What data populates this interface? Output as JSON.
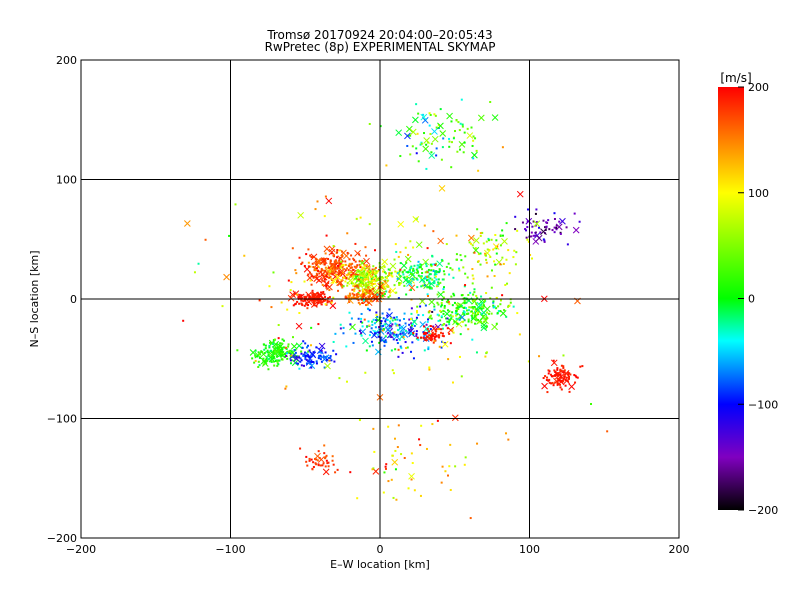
{
  "chart_data": {
    "type": "scatter",
    "title": "Tromsø 20170924 20:04:00–20:05:43",
    "subtitle": "RwPretec (8p) EXPERIMENTAL SKYMAP",
    "xlabel": "E–W location [km]",
    "ylabel": "N–S location [km]",
    "xlim": [
      -200,
      200
    ],
    "ylim": [
      -200,
      200
    ],
    "xticks": [
      -200,
      -100,
      0,
      100,
      200
    ],
    "yticks": [
      -200,
      -100,
      0,
      100,
      200
    ],
    "xtick_labels": [
      "−200",
      "−100",
      "0",
      "100",
      "200"
    ],
    "ytick_labels": [
      "−200",
      "−100",
      "0",
      "100",
      "200"
    ],
    "grid": true,
    "colorbar": {
      "label": "[m/s]",
      "min": -200,
      "max": 200,
      "ticks": [
        -200,
        -100,
        0,
        100,
        200
      ],
      "tick_labels": [
        "−200",
        "−100",
        "0",
        "100",
        "200"
      ],
      "stops": [
        {
          "v": -200,
          "color": "#000000"
        },
        {
          "v": -150,
          "color": "#8000c0"
        },
        {
          "v": -100,
          "color": "#0000ff"
        },
        {
          "v": -40,
          "color": "#00ffff"
        },
        {
          "v": 0,
          "color": "#00ff00"
        },
        {
          "v": 100,
          "color": "#ffff00"
        },
        {
          "v": 150,
          "color": "#ff8000"
        },
        {
          "v": 200,
          "color": "#ff0000"
        }
      ]
    },
    "marker_types": [
      "dot",
      "cross"
    ],
    "clusters": [
      {
        "cx": -30,
        "cy": 25,
        "sx": 22,
        "sy": 14,
        "n": 260,
        "v": 170,
        "vs": 40
      },
      {
        "cx": -5,
        "cy": 15,
        "sx": 20,
        "sy": 14,
        "n": 220,
        "v": 80,
        "vs": 70
      },
      {
        "cx": 30,
        "cy": 20,
        "sx": 22,
        "sy": 14,
        "n": 160,
        "v": 0,
        "vs": 80
      },
      {
        "cx": -45,
        "cy": 0,
        "sx": 12,
        "sy": 6,
        "n": 120,
        "v": 190,
        "vs": 15
      },
      {
        "cx": -10,
        "cy": 2,
        "sx": 14,
        "sy": 6,
        "n": 110,
        "v": 160,
        "vs": 40
      },
      {
        "cx": 60,
        "cy": -10,
        "sx": 25,
        "sy": 15,
        "n": 220,
        "v": 20,
        "vs": 80
      },
      {
        "cx": 10,
        "cy": -25,
        "sx": 35,
        "sy": 18,
        "n": 220,
        "v": -70,
        "vs": 100
      },
      {
        "cx": -70,
        "cy": -45,
        "sx": 16,
        "sy": 10,
        "n": 160,
        "v": 10,
        "vs": 40
      },
      {
        "cx": -45,
        "cy": -50,
        "sx": 15,
        "sy": 10,
        "n": 80,
        "v": -90,
        "vs": 50
      },
      {
        "cx": 120,
        "cy": -65,
        "sx": 12,
        "sy": 10,
        "n": 90,
        "v": 190,
        "vs": 15
      },
      {
        "cx": 40,
        "cy": 135,
        "sx": 35,
        "sy": 30,
        "n": 90,
        "v": 20,
        "vs": 120
      },
      {
        "cx": 110,
        "cy": 60,
        "sx": 20,
        "sy": 15,
        "n": 60,
        "v": -150,
        "vs": 50
      },
      {
        "cx": 70,
        "cy": 40,
        "sx": 30,
        "sy": 25,
        "n": 80,
        "v": 60,
        "vs": 100
      },
      {
        "cx": -40,
        "cy": -135,
        "sx": 10,
        "sy": 8,
        "n": 40,
        "v": 180,
        "vs": 30
      },
      {
        "cx": 35,
        "cy": -30,
        "sx": 10,
        "sy": 6,
        "n": 60,
        "v": 190,
        "vs": 15
      },
      {
        "cx": 20,
        "cy": -140,
        "sx": 50,
        "sy": 40,
        "n": 50,
        "v": 120,
        "vs": 120
      },
      {
        "cx": 0,
        "cy": 0,
        "sx": 120,
        "sy": 100,
        "n": 160,
        "v": 120,
        "vs": 120
      }
    ]
  }
}
